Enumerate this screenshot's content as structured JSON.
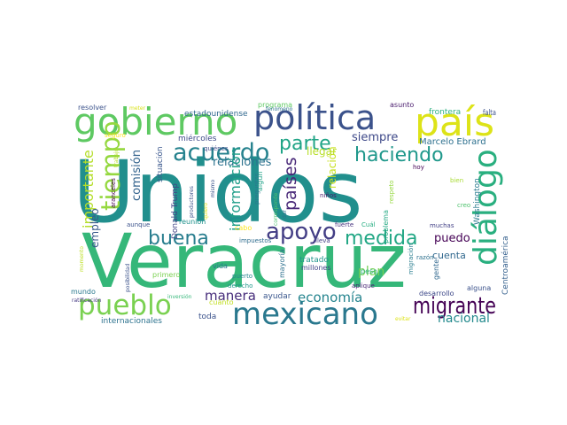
{
  "words": [
    {
      "text": "Unidos",
      "color": "#218f8d"
    },
    {
      "text": "Veracruz",
      "color": "#35b779"
    },
    {
      "text": "gobierno",
      "color": "#5ec962"
    },
    {
      "text": "política",
      "color": "#3b528b"
    },
    {
      "text": "país",
      "color": "#dde318"
    },
    {
      "text": "diálogo",
      "color": "#29af7f"
    },
    {
      "text": "mexicano",
      "color": "#2a788e"
    },
    {
      "text": "pueblo",
      "color": "#7ad151"
    },
    {
      "text": "migrante",
      "color": "#440154"
    },
    {
      "text": "acuerdo",
      "color": "#26828e"
    },
    {
      "text": "parte",
      "color": "#20a486"
    },
    {
      "text": "haciendo",
      "color": "#1f988b"
    },
    {
      "text": "tiempo",
      "color": "#95d840"
    },
    {
      "text": "buena",
      "color": "#287d8e"
    },
    {
      "text": "apoyo",
      "color": "#433e85"
    },
    {
      "text": "medida",
      "color": "#22a785"
    },
    {
      "text": "siempre",
      "color": "#3e4989"
    },
    {
      "text": "países",
      "color": "#482878"
    },
    {
      "text": "relaciones",
      "color": "#2c728e"
    },
    {
      "text": "comisión",
      "color": "#33638d"
    },
    {
      "text": "importante",
      "color": "#b5de2b"
    },
    {
      "text": "información",
      "color": "#1f9e89"
    },
    {
      "text": "Marcelo Ebrard",
      "color": "#2d708e"
    },
    {
      "text": "economía",
      "color": "#25848e"
    },
    {
      "text": "manera",
      "color": "#472d7b"
    },
    {
      "text": "nacional",
      "color": "#238a8d"
    },
    {
      "text": "puedo",
      "color": "#440154"
    },
    {
      "text": "plan",
      "color": "#73d056"
    },
    {
      "text": "cuenta",
      "color": "#31688e"
    },
    {
      "text": "relación",
      "color": "#c8e020"
    },
    {
      "text": "empleo",
      "color": "#38598c"
    },
    {
      "text": "llegar",
      "color": "#b8de29"
    },
    {
      "text": "estadounidense",
      "color": "#31688e"
    },
    {
      "text": "situación",
      "color": "#39568c"
    },
    {
      "text": "miércoles",
      "color": "#3e4a89"
    },
    {
      "text": "Washington",
      "color": "#297b8e"
    },
    {
      "text": "Centroamérica",
      "color": "#34608d"
    },
    {
      "text": "Donald Trump",
      "color": "#414487"
    },
    {
      "text": "frontera",
      "color": "#2ab07f"
    },
    {
      "text": "falta",
      "color": "#3b528b"
    },
    {
      "text": "programa",
      "color": "#5ec962"
    },
    {
      "text": "asunto",
      "color": "#481a6c"
    },
    {
      "text": "resolver",
      "color": "#3b528b"
    },
    {
      "text": "meter",
      "color": "#d8e219"
    },
    {
      "text": "seguro",
      "color": "#fde725"
    },
    {
      "text": "trabajo",
      "color": "#b5de2b"
    },
    {
      "text": "quiénes",
      "color": "#3e4989"
    },
    {
      "text": "fenómeno",
      "color": "#2c718e"
    },
    {
      "text": "hoy",
      "color": "#440154"
    },
    {
      "text": "bien",
      "color": "#a8db34"
    },
    {
      "text": "creo",
      "color": "#4cc26c"
    },
    {
      "text": "respeto",
      "color": "#95d840"
    },
    {
      "text": "problema",
      "color": "#23a983"
    },
    {
      "text": "migración",
      "color": "#287d8e"
    },
    {
      "text": "gente",
      "color": "#31688e"
    },
    {
      "text": "razón",
      "color": "#2d708e"
    },
    {
      "text": "muchas",
      "color": "#424086"
    },
    {
      "text": "fuerte",
      "color": "#46327e"
    },
    {
      "text": "Cuál",
      "color": "#26ad81"
    },
    {
      "text": "aranceles",
      "color": "#440154"
    },
    {
      "text": "productores",
      "color": "#3b528b"
    },
    {
      "text": "quiero",
      "color": "#dde318"
    },
    {
      "text": "mismo",
      "color": "#3a548c"
    },
    {
      "text": "preguntas",
      "color": "#2a788e"
    },
    {
      "text": "corresponde",
      "color": "#4ac16d"
    },
    {
      "text": "algún",
      "color": "#1fa187"
    },
    {
      "text": "dar",
      "color": "#2c728e"
    },
    {
      "text": "niños",
      "color": "#481769"
    },
    {
      "text": "aunque",
      "color": "#3b528b"
    },
    {
      "text": "reunión",
      "color": "#20928c"
    },
    {
      "text": "cabo",
      "color": "#fde725"
    },
    {
      "text": "impuestos",
      "color": "#2f6c8e"
    },
    {
      "text": "lleva",
      "color": "#433e85"
    },
    {
      "text": "tratado",
      "color": "#1f958b"
    },
    {
      "text": "millones",
      "color": "#414487"
    },
    {
      "text": "peso",
      "color": "#29af7f"
    },
    {
      "text": "aplique",
      "color": "#482475"
    },
    {
      "text": "desarrollo",
      "color": "#3e4989"
    },
    {
      "text": "alguna",
      "color": "#3b528b"
    },
    {
      "text": "evitar",
      "color": "#dde318"
    },
    {
      "text": "mayoría",
      "color": "#2d708e"
    },
    {
      "text": "vida",
      "color": "#2a788e"
    },
    {
      "text": "primero",
      "color": "#7ad151"
    },
    {
      "text": "puerto",
      "color": "#25848e"
    },
    {
      "text": "ayudar",
      "color": "#39568c"
    },
    {
      "text": "derecho",
      "color": "#1f988b"
    },
    {
      "text": "cuánto",
      "color": "#c2df23"
    },
    {
      "text": "toda",
      "color": "#3b528b"
    },
    {
      "text": "inversión",
      "color": "#35b779"
    },
    {
      "text": "internacionales",
      "color": "#2c728e"
    },
    {
      "text": "momento",
      "color": "#bddf26"
    },
    {
      "text": "mundo",
      "color": "#2a788e"
    },
    {
      "text": "posibilidad",
      "color": "#3b528b"
    },
    {
      "text": "ratificación",
      "color": "#453882"
    }
  ]
}
